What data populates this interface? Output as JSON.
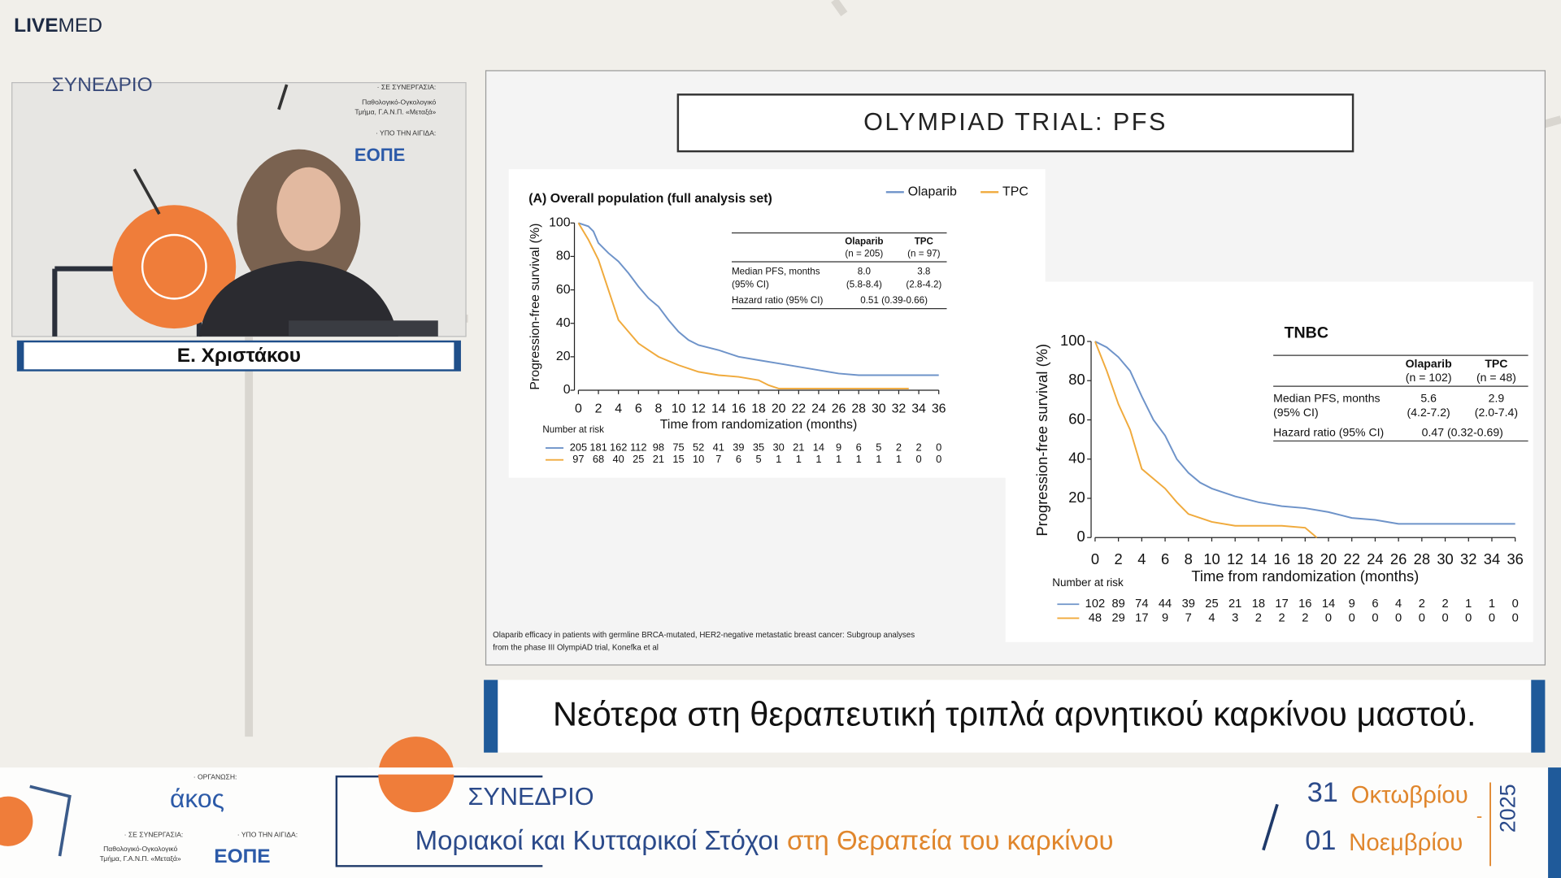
{
  "header": {
    "logo_bold": "LIVE",
    "logo_light": "MED"
  },
  "speaker": {
    "name": "Ε. Χριστάκου",
    "backdrop": {
      "event": "ΣΥΝΕΔΡΙΟ",
      "partner_label": "· ΣΕ ΣΥΝΕΡΓΑΣΙΑ:",
      "partner_line1": "Παθολογικό-Ογκολογικό",
      "partner_line2": "Τμήμα, Γ.Α.Ν.Π. «Μεταξά»",
      "auspices_label": "· ΥΠΟ ΤΗΝ ΑΙΓΙΔΑ:",
      "auspices": "ΕΟΠΕ"
    }
  },
  "slide": {
    "title": "OLYMPIAD TRIAL: PFS",
    "charts": [
      {
        "type": "line",
        "title": "(A) Overall population (full analysis set)",
        "legend": true,
        "x_label": "Time from randomization (months)",
        "y_label": "Progression-free survival (%)",
        "xlim": [
          0,
          36
        ],
        "xticks": [
          0,
          2,
          4,
          6,
          8,
          10,
          12,
          14,
          16,
          18,
          20,
          22,
          24,
          26,
          28,
          30,
          32,
          34,
          36
        ],
        "ylim": [
          0,
          100
        ],
        "yticks": [
          0,
          20,
          40,
          60,
          80,
          100
        ],
        "series": [
          {
            "name": "Olaparib",
            "color": "#6e93c9",
            "x": [
              0,
              1,
              1.5,
              2,
              3,
              4,
              5,
              6,
              7,
              8,
              9,
              10,
              11,
              12,
              14,
              16,
              18,
              20,
              22,
              24,
              26,
              28,
              30,
              36
            ],
            "y": [
              100,
              98,
              95,
              88,
              82,
              77,
              70,
              62,
              55,
              50,
              42,
              35,
              30,
              27,
              24,
              20,
              18,
              16,
              14,
              12,
              10,
              9,
              9,
              9
            ]
          },
          {
            "name": "TPC",
            "color": "#f0aa3c",
            "x": [
              0,
              1,
              2,
              3,
              4,
              5,
              6,
              7,
              8,
              10,
              12,
              14,
              16,
              18,
              19,
              20,
              33
            ],
            "y": [
              100,
              90,
              78,
              60,
              42,
              35,
              28,
              24,
              20,
              15,
              11,
              9,
              8,
              6,
              3,
              1,
              1
            ]
          }
        ],
        "stats": {
          "header": [
            [
              "Olaparib",
              "(n = 205)"
            ],
            [
              "TPC",
              "(n = 97)"
            ]
          ],
          "rows": [
            {
              "label": [
                "Median PFS, months",
                "(95% CI)"
              ],
              "cells": [
                [
                  "8.0",
                  "(5.8-8.4)"
                ],
                [
                  "3.8",
                  "(2.8-4.2)"
                ]
              ]
            },
            {
              "label": [
                "Hazard ratio (95% CI)"
              ],
              "cells": [
                [
                  "0.51 (0.39-0.66)"
                ]
              ]
            }
          ]
        },
        "at_risk": {
          "label": "Number at risk",
          "rows": [
            [
              205,
              181,
              162,
              112,
              98,
              75,
              52,
              41,
              39,
              35,
              30,
              21,
              14,
              9,
              6,
              5,
              2,
              2,
              0
            ],
            [
              97,
              68,
              40,
              25,
              21,
              15,
              10,
              7,
              6,
              5,
              1,
              1,
              1,
              1,
              1,
              1,
              1,
              0,
              0
            ]
          ]
        }
      },
      {
        "type": "line",
        "title": "TNBC",
        "legend": false,
        "x_label": "Time from randomization (months)",
        "y_label": "Progression-free survival (%)",
        "xlim": [
          0,
          36
        ],
        "xticks": [
          0,
          2,
          4,
          6,
          8,
          10,
          12,
          14,
          16,
          18,
          20,
          22,
          24,
          26,
          28,
          30,
          32,
          34,
          36
        ],
        "ylim": [
          0,
          100
        ],
        "yticks": [
          0,
          20,
          40,
          60,
          80,
          100
        ],
        "series": [
          {
            "name": "Olaparib",
            "color": "#6e93c9",
            "x": [
              0,
              1,
              2,
              3,
              4,
              5,
              6,
              7,
              8,
              9,
              10,
              12,
              14,
              16,
              18,
              20,
              22,
              24,
              26,
              28,
              36
            ],
            "y": [
              100,
              97,
              92,
              85,
              72,
              60,
              52,
              40,
              33,
              28,
              25,
              21,
              18,
              16,
              15,
              13,
              10,
              9,
              7,
              7,
              7
            ]
          },
          {
            "name": "TPC",
            "color": "#f0aa3c",
            "x": [
              0,
              1,
              2,
              3,
              4,
              5,
              6,
              7,
              8,
              10,
              12,
              14,
              16,
              18,
              19
            ],
            "y": [
              100,
              85,
              68,
              55,
              35,
              30,
              25,
              18,
              12,
              8,
              6,
              6,
              6,
              5,
              0
            ]
          }
        ],
        "stats": {
          "header": [
            [
              "Olaparib",
              "(n = 102)"
            ],
            [
              "TPC",
              "(n = 48)"
            ]
          ],
          "rows": [
            {
              "label": [
                "Median PFS, months",
                "(95% CI)"
              ],
              "cells": [
                [
                  "5.6",
                  "(4.2-7.2)"
                ],
                [
                  "2.9",
                  "(2.0-7.4)"
                ]
              ]
            },
            {
              "label": [
                "Hazard ratio (95% CI)"
              ],
              "cells": [
                [
                  "0.47 (0.32-0.69)"
                ]
              ]
            }
          ]
        },
        "at_risk": {
          "label": "Number at risk",
          "rows": [
            [
              102,
              89,
              74,
              44,
              39,
              25,
              21,
              18,
              17,
              16,
              14,
              9,
              6,
              4,
              2,
              2,
              1,
              1,
              0
            ],
            [
              48,
              29,
              17,
              9,
              7,
              4,
              3,
              2,
              2,
              2,
              0,
              0,
              0,
              0,
              0,
              0,
              0,
              0,
              0
            ]
          ]
        }
      }
    ],
    "citation": [
      "Olaparib efficacy in patients with germline BRCA-mutated, HER2-negative metastatic breast cancer: Subgroup analyses",
      "from the phase III OlympiAD trial, Konefka et al"
    ]
  },
  "caption": "Νεότερα στη θεραπευτική τριπλά αρνητικού καρκίνου μαστού.",
  "footer": {
    "organizer_label": "· ΟΡΓΑΝΩΣΗ:",
    "organizer": "άκος",
    "partner_label": "· ΣΕ ΣΥΝΕΡΓΑΣΙΑ:",
    "partner_line1": "Παθολογικό-Ογκολογικό",
    "partner_line2": "Τμήμα, Γ.Α.Ν.Π. «Μεταξά»",
    "auspices_label": "· ΥΠΟ ΤΗΝ ΑΙΓΙΔΑ:",
    "auspices": "ΕΟΠΕ",
    "event": "ΣΥΝΕΔΡΙΟ",
    "subtitle_blue": "Μοριακοί και Κυτταρικοί Στόχοι",
    "subtitle_orange": "στη Θεραπεία του καρκίνου",
    "day1": "31",
    "month1": "Οκτωβρίου",
    "dash": "-",
    "day2": "01",
    "month2": "Νοεμβρίου",
    "year": "2025"
  }
}
